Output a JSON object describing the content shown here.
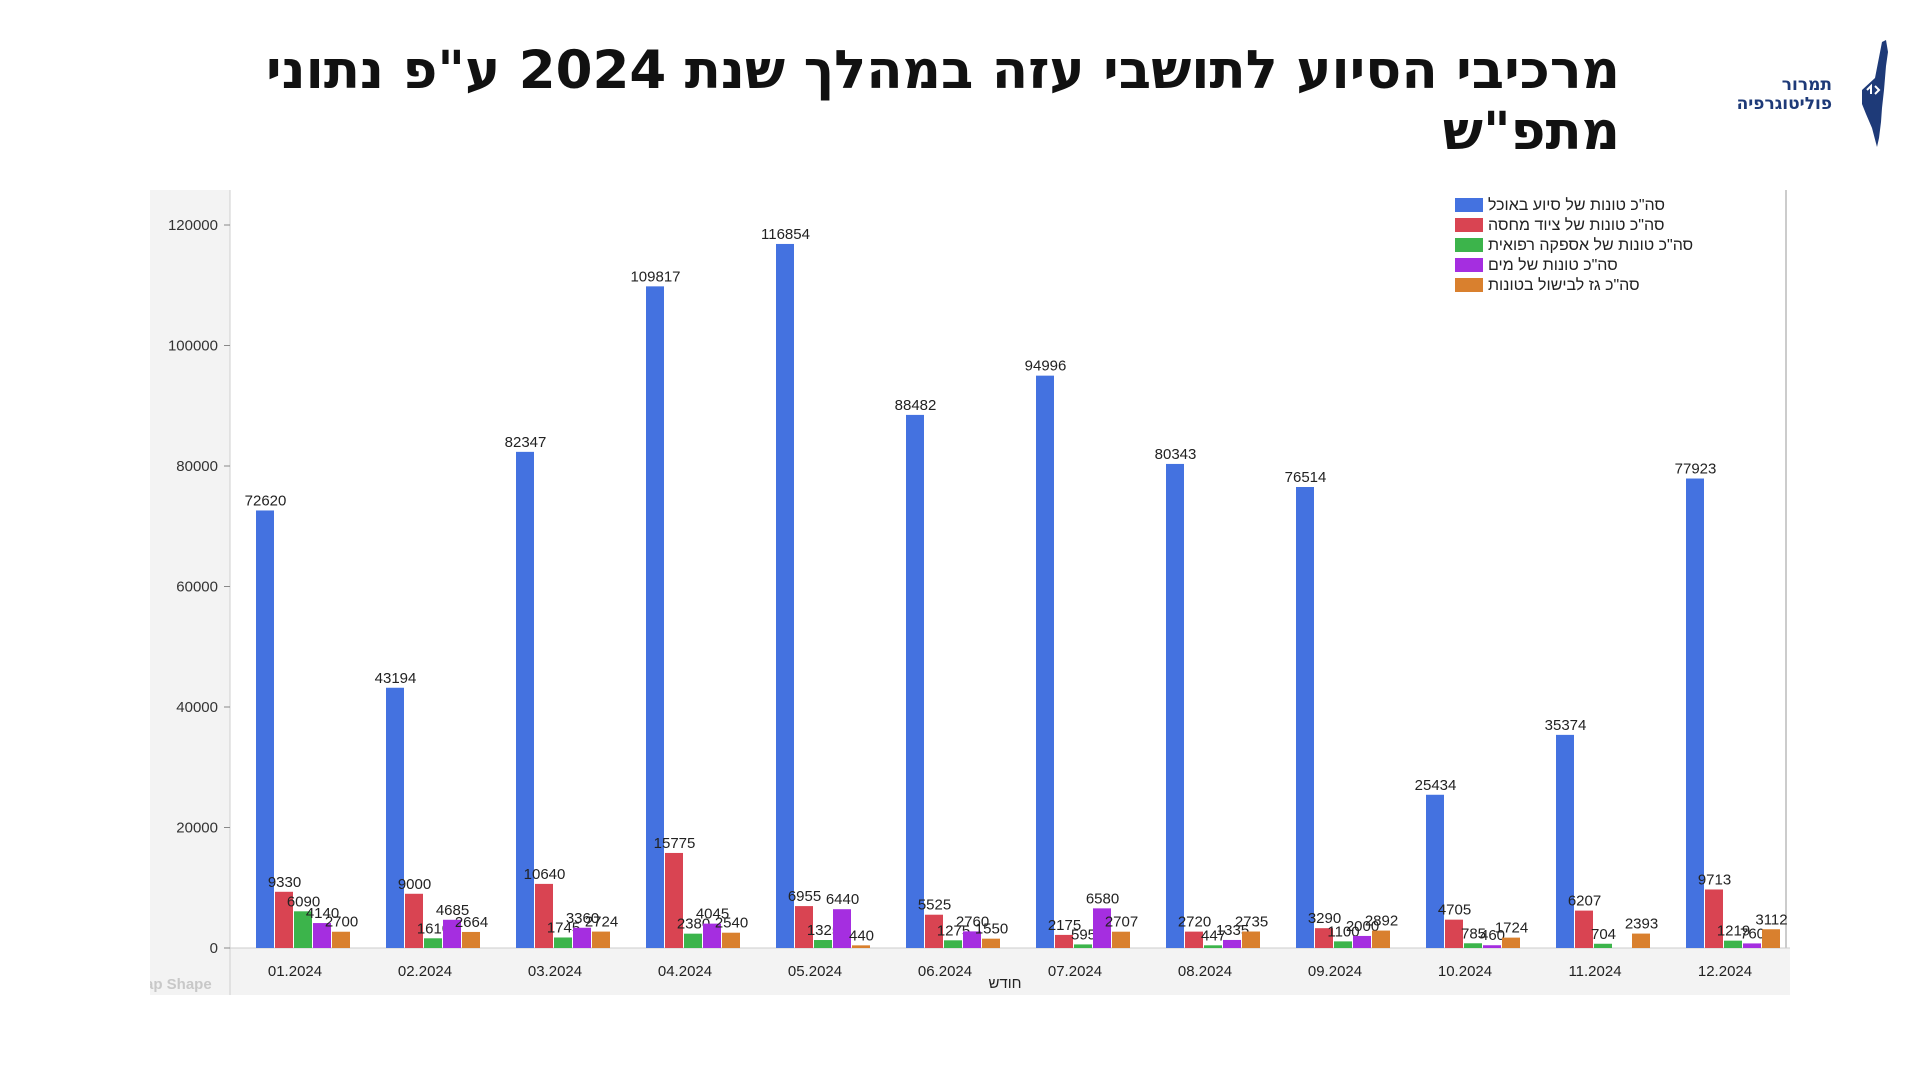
{
  "page": {
    "title": "מרכיבי הסיוע לתושבי עזה במהלך שנת 2024 ע\"פ נתוני מתפ\"ש"
  },
  "logo": {
    "line1": "תמרור",
    "line2": "פוליטוגרפיה",
    "icon": "israel-map-icon",
    "color": "#1e3a78"
  },
  "chart_data": {
    "type": "bar",
    "title": "",
    "xlabel": "חודש",
    "ylabel": "",
    "ylim": [
      0,
      120000
    ],
    "yticks": [
      0,
      20000,
      40000,
      60000,
      80000,
      100000,
      120000
    ],
    "categories": [
      "01.2024",
      "02.2024",
      "03.2024",
      "04.2024",
      "05.2024",
      "06.2024",
      "07.2024",
      "08.2024",
      "09.2024",
      "10.2024",
      "11.2024",
      "12.2024"
    ],
    "legend_position": "top-right",
    "series": [
      {
        "name": "סה\"כ טונות של סיוע באוכל",
        "color": "#4472e0",
        "values": [
          72620,
          43194,
          82347,
          109817,
          116854,
          88482,
          94996,
          80343,
          76514,
          25434,
          35374,
          77923
        ]
      },
      {
        "name": "סה\"כ טונות של ציוד מחסה",
        "color": "#d94452",
        "values": [
          9330,
          9000,
          10640,
          15775,
          6955,
          5525,
          2175,
          2720,
          3290,
          4705,
          6207,
          9713
        ]
      },
      {
        "name": "סה\"כ טונות של אספקה רפואית",
        "color": "#3cb44b",
        "values": [
          6090,
          1610,
          1745,
          2380,
          1325,
          1275,
          595,
          447,
          1100,
          785,
          704,
          1219
        ]
      },
      {
        "name": "סה\"כ טונות של מים",
        "color": "#a52ee0",
        "values": [
          4140,
          4685,
          3360,
          4045,
          6440,
          2760,
          6580,
          1335,
          2000,
          460,
          null,
          760
        ]
      },
      {
        "name": "סה\"כ גז לבישול בטונות",
        "color": "#d9802e",
        "values": [
          2700,
          2664,
          2724,
          2540,
          440,
          1550,
          2707,
          2735,
          2892,
          1724,
          2393,
          3112
        ]
      }
    ],
    "footer_fragment": "ap Shape"
  }
}
